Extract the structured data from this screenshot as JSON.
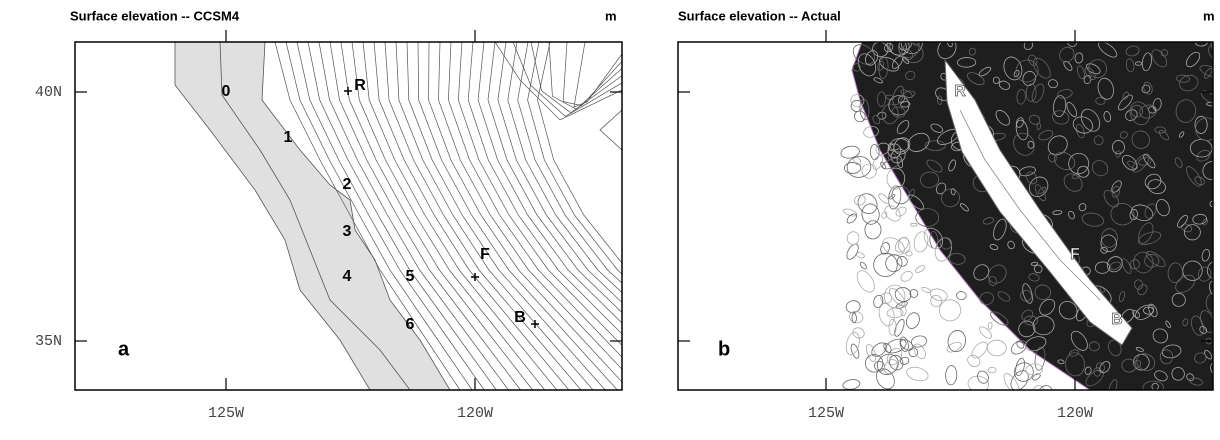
{
  "panels": [
    {
      "title": "Surface elevation -- CCSM4",
      "unit": "m",
      "panel_label": "a",
      "y_ticks": [
        "40N",
        "35N"
      ],
      "x_ticks": [
        "125W",
        "120W"
      ],
      "point_labels": [
        "0",
        "1",
        "2",
        "3",
        "4",
        "5",
        "6",
        "R",
        "F",
        "B"
      ]
    },
    {
      "title": "Surface elevation -- Actual",
      "unit": "m",
      "panel_label": "b",
      "y_ticks": [
        "40N",
        "35N"
      ],
      "x_ticks": [
        "125W",
        "120W"
      ],
      "point_labels": [
        "R",
        "F",
        "B"
      ]
    }
  ]
}
